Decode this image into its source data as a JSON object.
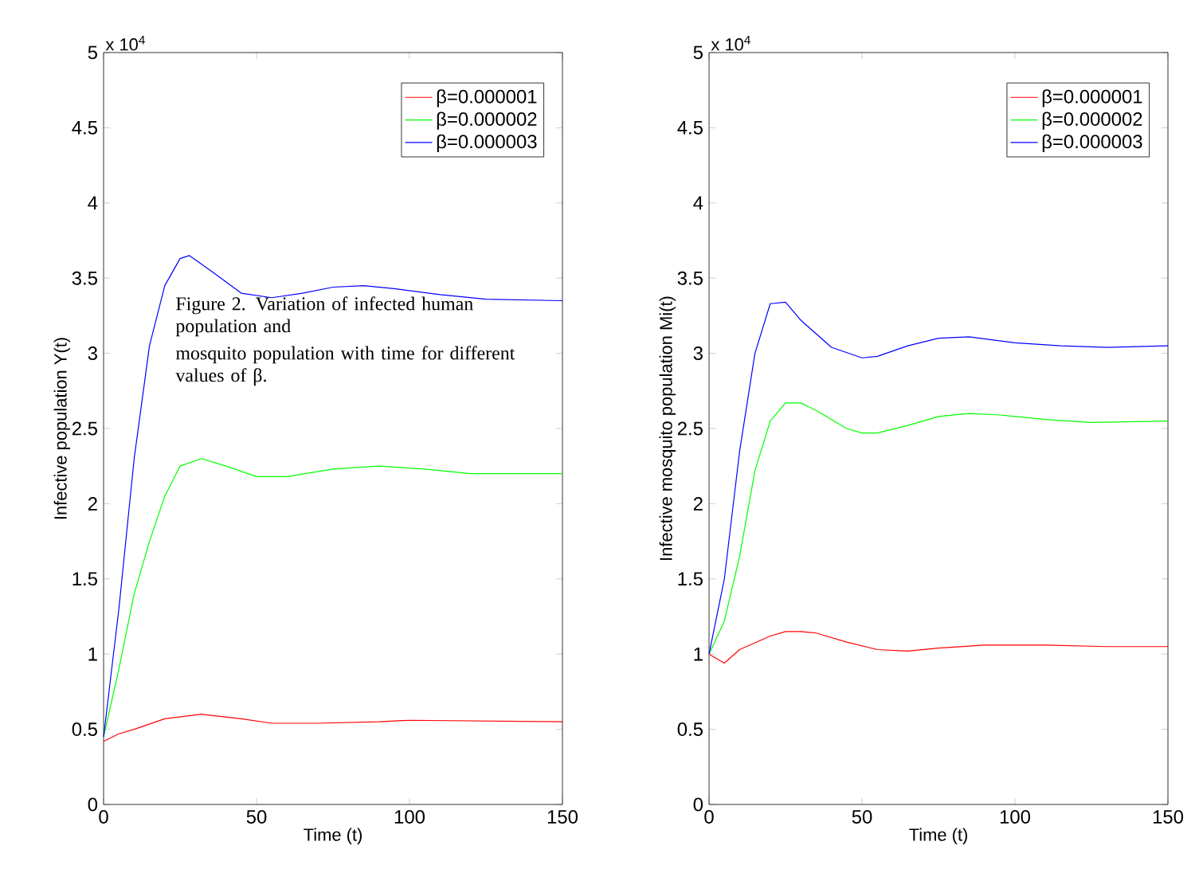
{
  "chart_data": [
    {
      "type": "line",
      "xlabel": "Time (t)",
      "ylabel": "Infective population Y(t)",
      "xlim": [
        0,
        150
      ],
      "xticks": [
        0,
        50,
        100,
        150
      ],
      "ylim": [
        0,
        5
      ],
      "yticks": [
        0,
        0.5,
        1,
        1.5,
        2,
        2.5,
        3,
        3.5,
        4,
        4.5,
        5
      ],
      "legend": "top right",
      "grid": false,
      "marker": "none",
      "line_style": "solid",
      "annotations": [
        "x 10$^{4}$",
        "Figure 2. Variation of infected human population and",
        "mosquito population with time for different values of β."
      ],
      "series": [
        {
          "name": "β=0.000001",
          "color": "#ff0000",
          "x": [
            0,
            5,
            10,
            20,
            32,
            45,
            55,
            70,
            90,
            100,
            150
          ],
          "values": [
            0.42,
            0.47,
            0.5,
            0.57,
            0.6,
            0.57,
            0.54,
            0.54,
            0.55,
            0.56,
            0.55
          ]
        },
        {
          "name": "β=0.000002",
          "color": "#00ff00",
          "x": [
            0,
            5,
            10,
            15,
            20,
            25,
            32,
            40,
            50,
            60,
            75,
            90,
            105,
            120,
            150
          ],
          "values": [
            0.45,
            0.9,
            1.4,
            1.75,
            2.05,
            2.25,
            2.3,
            2.25,
            2.18,
            2.18,
            2.23,
            2.25,
            2.23,
            2.2,
            2.2
          ]
        },
        {
          "name": "β=0.000003",
          "color": "#0000ff",
          "x": [
            0,
            5,
            10,
            15,
            20,
            25,
            28,
            35,
            45,
            55,
            65,
            75,
            85,
            95,
            110,
            125,
            150
          ],
          "values": [
            0.45,
            1.3,
            2.3,
            3.05,
            3.45,
            3.63,
            3.65,
            3.55,
            3.4,
            3.37,
            3.4,
            3.44,
            3.45,
            3.43,
            3.39,
            3.36,
            3.35
          ]
        }
      ]
    },
    {
      "type": "line",
      "xlabel": "Time (t)",
      "ylabel": "Infective mosquito population Mi(t)",
      "xlim": [
        0,
        150
      ],
      "xticks": [
        0,
        50,
        100,
        150
      ],
      "ylim": [
        0,
        5
      ],
      "yticks": [
        0,
        0.5,
        1,
        1.5,
        2,
        2.5,
        3,
        3.5,
        4,
        4.5,
        5
      ],
      "legend": "top right",
      "grid": false,
      "marker": "none",
      "line_style": "solid",
      "annotations": [
        "x 10$^{4}$"
      ],
      "series": [
        {
          "name": "β=0.000001",
          "color": "#ff0000",
          "x": [
            0,
            5,
            10,
            20,
            25,
            30,
            35,
            45,
            55,
            65,
            75,
            90,
            110,
            130,
            150
          ],
          "values": [
            1.0,
            0.94,
            1.03,
            1.12,
            1.15,
            1.15,
            1.14,
            1.08,
            1.03,
            1.02,
            1.04,
            1.06,
            1.06,
            1.05,
            1.05
          ]
        },
        {
          "name": "β=0.000002",
          "color": "#00ff00",
          "x": [
            0,
            5,
            10,
            15,
            20,
            25,
            30,
            35,
            45,
            50,
            55,
            65,
            75,
            85,
            95,
            110,
            125,
            150
          ],
          "values": [
            1.0,
            1.22,
            1.65,
            2.22,
            2.55,
            2.67,
            2.67,
            2.62,
            2.5,
            2.47,
            2.47,
            2.52,
            2.58,
            2.6,
            2.59,
            2.56,
            2.54,
            2.55
          ]
        },
        {
          "name": "β=0.000003",
          "color": "#0000ff",
          "x": [
            0,
            5,
            10,
            15,
            20,
            25,
            30,
            40,
            50,
            55,
            65,
            75,
            85,
            100,
            115,
            130,
            150
          ],
          "values": [
            1.0,
            1.5,
            2.35,
            3.0,
            3.33,
            3.34,
            3.22,
            3.04,
            2.97,
            2.98,
            3.05,
            3.1,
            3.11,
            3.07,
            3.05,
            3.04,
            3.05
          ]
        }
      ]
    }
  ]
}
